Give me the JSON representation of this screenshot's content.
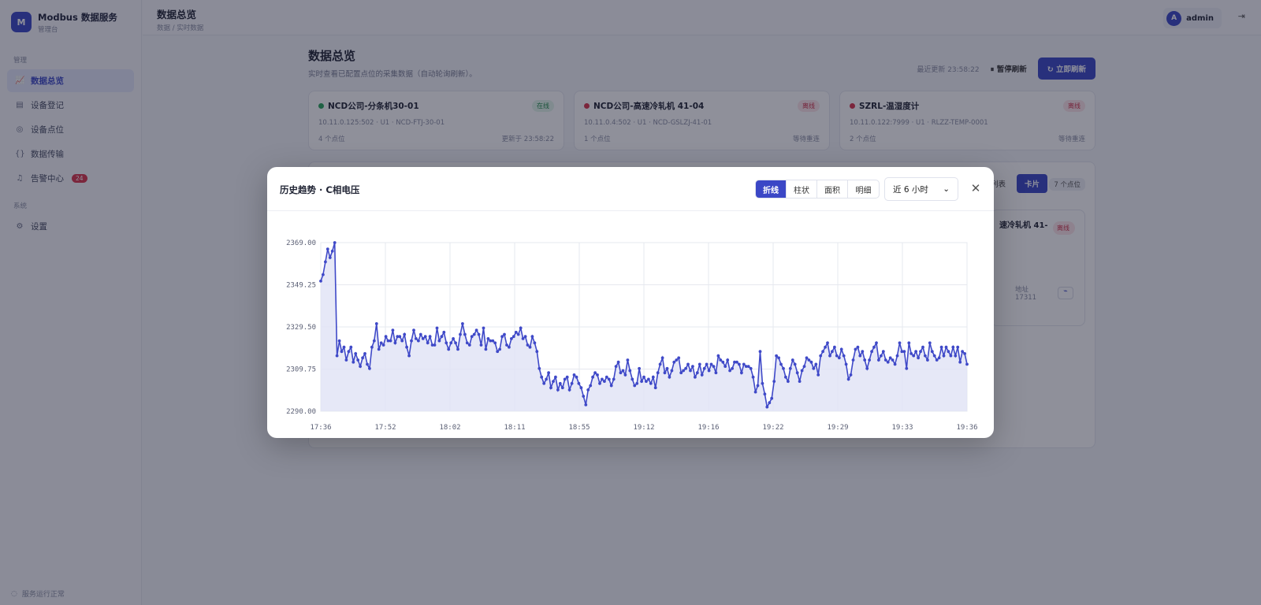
{
  "app": {
    "brand_title": "Modbus 数据服务",
    "brand_sub": "管理台",
    "logo_glyph": "M"
  },
  "sidebar": {
    "group_manage": "管理",
    "items": [
      {
        "label": "数据总览",
        "icon": "chart-line-icon"
      },
      {
        "label": "设备登记",
        "icon": "table-icon"
      },
      {
        "label": "设备点位",
        "icon": "check-circle-icon"
      },
      {
        "label": "数据传输",
        "icon": "braces-icon"
      },
      {
        "label": "告警中心",
        "icon": "bell-icon",
        "badge": "24"
      }
    ],
    "group_system": "系统",
    "system_items": [
      {
        "label": "设置",
        "icon": "gear-icon"
      }
    ],
    "footer": "服务运行正常"
  },
  "topbar": {
    "title": "数据总览",
    "crumb": "数据 / 实时数据",
    "user": "admin",
    "avatar_letter": "A"
  },
  "page": {
    "title": "数据总览",
    "desc": "实时查看已配置点位的采集数据（自动轮询刷新）。",
    "last_updated": "最近更新 23:58:22",
    "pause_label": "暂停刷新",
    "refresh_label": "立即刷新"
  },
  "devices": [
    {
      "name": "NCD公司-分条机30-01",
      "status": "在线",
      "online": true,
      "addr": "10.11.0.125:502 · U1 · NCD-FTJ-30-01",
      "points": "4 个点位",
      "foot_right": "更新于 23:58:22"
    },
    {
      "name": "NCD公司-高速冷轧机 41-04",
      "status": "离线",
      "online": false,
      "addr": "10.11.0.4:502 · U1 · NCD-GSLZJ-41-01",
      "points": "1 个点位",
      "foot_right": "等待重连"
    },
    {
      "name": "SZRL-温湿度计",
      "status": "离线",
      "online": false,
      "addr": "10.11.0.122:7999 · U1 · RLZZ-TEMP-0001",
      "points": "2 个点位",
      "foot_right": "等待重连"
    }
  ],
  "panel": {
    "view_list": "列表",
    "view_card": "卡片",
    "count": "7 个点位",
    "card_name": "速冷轧机 41-",
    "card_badge": "离线",
    "card_addr_label": "地址",
    "card_addr": "17311"
  },
  "modal": {
    "title": "历史趋势 · C相电压",
    "modes": [
      "折线",
      "柱状",
      "面积",
      "明细"
    ],
    "active_mode": "折线",
    "range": "近 6 小时",
    "close_icon": "close-icon"
  },
  "colors": {
    "accent": "#3b47c6",
    "line": "#3f49c8",
    "area": "#e2e4f6",
    "online": "#2aa65a",
    "offline": "#d8354c"
  },
  "chart_data": {
    "type": "line",
    "title": "",
    "xlabel": "",
    "ylabel": "",
    "ylim": [
      2290,
      2369
    ],
    "y_ticks": [
      "2369.00",
      "2349.25",
      "2329.50",
      "2309.75",
      "2290.00"
    ],
    "x_ticks": [
      "17:36",
      "17:52",
      "18:02",
      "18:11",
      "18:55",
      "19:12",
      "19:16",
      "19:22",
      "19:29",
      "19:33",
      "19:36"
    ],
    "grid": true,
    "series": [
      {
        "values": [
          2351,
          2354,
          2360,
          2366,
          2362,
          2365,
          2369,
          2316,
          2323,
          2318,
          2320,
          2314,
          2318,
          2320,
          2313,
          2317,
          2314,
          2311,
          2315,
          2317,
          2312,
          2310,
          2320,
          2323,
          2331,
          2319,
          2322,
          2321,
          2325,
          2323,
          2323,
          2328,
          2322,
          2325,
          2325,
          2323,
          2326,
          2320,
          2316,
          2323,
          2328,
          2324,
          2323,
          2326,
          2324,
          2325,
          2322,
          2325,
          2321,
          2321,
          2329,
          2323,
          2325,
          2327,
          2322,
          2319,
          2322,
          2324,
          2322,
          2319,
          2326,
          2331,
          2326,
          2322,
          2321,
          2325,
          2326,
          2328,
          2326,
          2321,
          2329,
          2319,
          2324,
          2323,
          2323,
          2322,
          2318,
          2319,
          2325,
          2326,
          2321,
          2320,
          2324,
          2325,
          2327,
          2326,
          2329,
          2324,
          2325,
          2321,
          2320,
          2325,
          2322,
          2318,
          2310,
          2306,
          2303,
          2305,
          2308,
          2301,
          2304,
          2306,
          2300,
          2303,
          2301,
          2305,
          2306,
          2300,
          2303,
          2307,
          2306,
          2303,
          2301,
          2297,
          2293,
          2300,
          2302,
          2306,
          2308,
          2307,
          2303,
          2305,
          2304,
          2306,
          2305,
          2302,
          2305,
          2311,
          2313,
          2308,
          2309,
          2307,
          2314,
          2309,
          2305,
          2302,
          2303,
          2310,
          2304,
          2306,
          2304,
          2305,
          2303,
          2306,
          2301,
          2308,
          2312,
          2315,
          2308,
          2310,
          2306,
          2309,
          2313,
          2314,
          2315,
          2308,
          2309,
          2310,
          2312,
          2309,
          2311,
          2306,
          2308,
          2312,
          2307,
          2310,
          2312,
          2309,
          2312,
          2311,
          2308,
          2316,
          2314,
          2313,
          2311,
          2314,
          2309,
          2310,
          2313,
          2313,
          2312,
          2308,
          2312,
          2311,
          2311,
          2310,
          2306,
          2299,
          2302,
          2318,
          2303,
          2298,
          2292,
          2294,
          2296,
          2304,
          2316,
          2315,
          2312,
          2310,
          2306,
          2304,
          2310,
          2314,
          2312,
          2308,
          2304,
          2309,
          2311,
          2315,
          2314,
          2313,
          2310,
          2312,
          2307,
          2316,
          2318,
          2320,
          2322,
          2316,
          2318,
          2320,
          2316,
          2315,
          2319,
          2316,
          2312,
          2305,
          2307,
          2314,
          2319,
          2320,
          2316,
          2318,
          2314,
          2310,
          2314,
          2318,
          2320,
          2322,
          2314,
          2316,
          2318,
          2314,
          2313,
          2315,
          2314,
          2312,
          2316,
          2322,
          2318,
          2318,
          2310,
          2322,
          2317,
          2316,
          2318,
          2315,
          2318,
          2320,
          2316,
          2314,
          2322,
          2318,
          2316,
          2314,
          2315,
          2320,
          2316,
          2320,
          2318,
          2316,
          2320,
          2316,
          2320,
          2313,
          2318,
          2317,
          2312
        ]
      }
    ]
  }
}
